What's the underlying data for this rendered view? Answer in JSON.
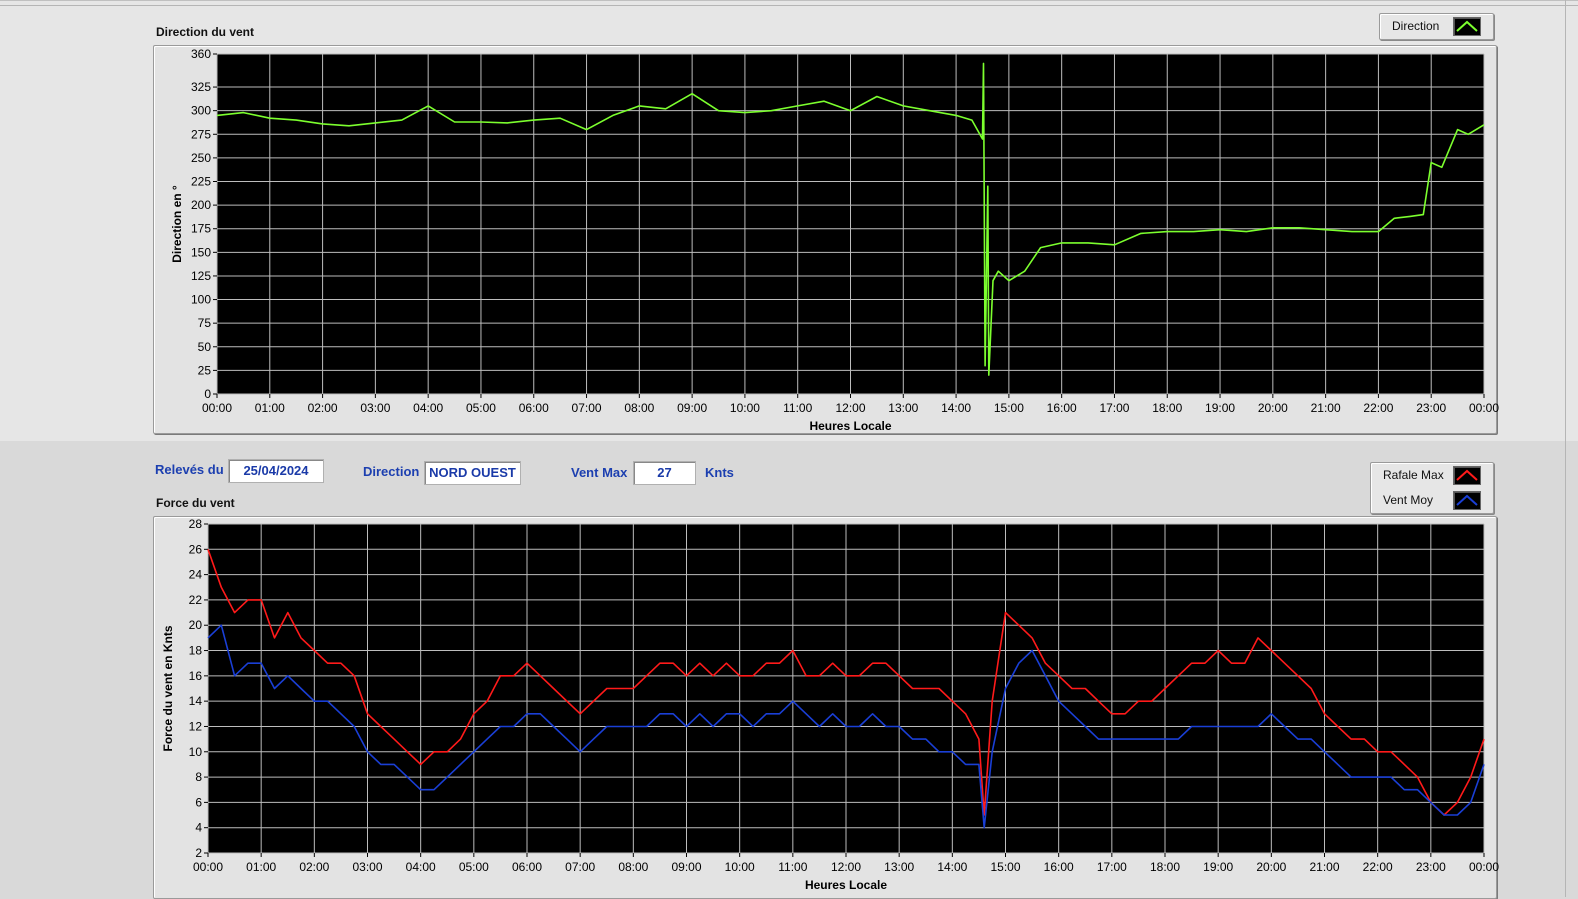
{
  "top_chart": {
    "section_title": "Direction du vent",
    "ylabel": "Direction en °",
    "xlabel": "Heures Locale",
    "legend": [
      {
        "label": "Direction",
        "color": "#7cff2e"
      }
    ]
  },
  "info": {
    "releves_label": "Relevés du",
    "date": "25/04/2024",
    "direction_label": "Direction",
    "direction_value": "NORD OUEST",
    "vent_max_label": "Vent Max",
    "vent_max_value": "27",
    "unit": "Knts"
  },
  "bottom_chart": {
    "section_title": "Force du vent",
    "ylabel": "Force du vent en Knts",
    "xlabel": "Heures Locale",
    "legend": [
      {
        "label": "Rafale Max",
        "color": "#ff1a1a"
      },
      {
        "label": "Vent Moy",
        "color": "#1a3fd6"
      }
    ]
  },
  "chart_data": [
    {
      "type": "line",
      "ylabel": "Direction en °",
      "xlabel": "Heures Locale",
      "ylim": [
        0,
        360
      ],
      "yticks": [
        0,
        25,
        50,
        75,
        100,
        125,
        150,
        175,
        200,
        225,
        250,
        275,
        300,
        325,
        360
      ],
      "xticks": [
        "00:00",
        "01:00",
        "02:00",
        "03:00",
        "04:00",
        "05:00",
        "06:00",
        "07:00",
        "08:00",
        "09:00",
        "10:00",
        "11:00",
        "12:00",
        "13:00",
        "14:00",
        "15:00",
        "16:00",
        "17:00",
        "18:00",
        "19:00",
        "20:00",
        "21:00",
        "22:00",
        "23:00",
        "00:00"
      ],
      "grid": true,
      "legend_position": "top-right",
      "series": [
        {
          "name": "Direction",
          "color": "#7cff2e",
          "x": [
            0,
            0.5,
            1,
            1.5,
            2,
            2.5,
            3,
            3.5,
            4,
            4.5,
            5,
            5.5,
            6,
            6.5,
            7,
            7.5,
            8,
            8.5,
            9,
            9.5,
            10,
            10.5,
            11,
            11.5,
            12,
            12.5,
            13,
            13.5,
            14,
            14.3,
            14.5,
            14.52,
            14.55,
            14.6,
            14.62,
            14.7,
            14.8,
            15,
            15.3,
            15.6,
            16,
            16.5,
            17,
            17.5,
            18,
            18.5,
            19,
            19.5,
            20,
            20.5,
            21,
            21.5,
            22,
            22.3,
            22.6,
            22.85,
            23,
            23.2,
            23.5,
            23.7,
            24
          ],
          "y": [
            295,
            298,
            292,
            290,
            286,
            284,
            287,
            290,
            305,
            288,
            288,
            287,
            290,
            292,
            280,
            295,
            305,
            302,
            318,
            300,
            298,
            300,
            305,
            310,
            300,
            315,
            305,
            300,
            295,
            290,
            270,
            350,
            30,
            220,
            20,
            120,
            130,
            120,
            130,
            155,
            160,
            160,
            158,
            170,
            172,
            172,
            174,
            172,
            176,
            176,
            174,
            172,
            172,
            186,
            188,
            190,
            245,
            240,
            280,
            275,
            285
          ]
        }
      ]
    },
    {
      "type": "line",
      "ylabel": "Force du vent en Knts",
      "xlabel": "Heures Locale",
      "ylim": [
        2,
        28
      ],
      "yticks": [
        2,
        4,
        6,
        8,
        10,
        12,
        14,
        16,
        18,
        20,
        22,
        24,
        26,
        28
      ],
      "xticks": [
        "00:00",
        "01:00",
        "02:00",
        "03:00",
        "04:00",
        "05:00",
        "06:00",
        "07:00",
        "08:00",
        "09:00",
        "10:00",
        "11:00",
        "12:00",
        "13:00",
        "14:00",
        "15:00",
        "16:00",
        "17:00",
        "18:00",
        "19:00",
        "20:00",
        "21:00",
        "22:00",
        "23:00",
        "00:00"
      ],
      "grid": true,
      "legend_position": "top-right",
      "x": [
        0,
        0.25,
        0.5,
        0.75,
        1,
        1.25,
        1.5,
        1.75,
        2,
        2.25,
        2.5,
        2.75,
        3,
        3.25,
        3.5,
        3.75,
        4,
        4.25,
        4.5,
        4.75,
        5,
        5.25,
        5.5,
        5.75,
        6,
        6.25,
        6.5,
        6.75,
        7,
        7.25,
        7.5,
        7.75,
        8,
        8.25,
        8.5,
        8.75,
        9,
        9.25,
        9.5,
        9.75,
        10,
        10.25,
        10.5,
        10.75,
        11,
        11.25,
        11.5,
        11.75,
        12,
        12.25,
        12.5,
        12.75,
        13,
        13.25,
        13.5,
        13.75,
        14,
        14.25,
        14.5,
        14.6,
        14.75,
        15,
        15.25,
        15.5,
        15.75,
        16,
        16.25,
        16.5,
        16.75,
        17,
        17.25,
        17.5,
        17.75,
        18,
        18.25,
        18.5,
        18.75,
        19,
        19.25,
        19.5,
        19.75,
        20,
        20.25,
        20.5,
        20.75,
        21,
        21.25,
        21.5,
        21.75,
        22,
        22.25,
        22.5,
        22.75,
        23,
        23.25,
        23.5,
        23.75,
        24
      ],
      "series": [
        {
          "name": "Rafale Max",
          "color": "#ff1a1a",
          "y": [
            26,
            23,
            21,
            22,
            22,
            19,
            21,
            19,
            18,
            17,
            17,
            16,
            13,
            12,
            11,
            10,
            9,
            10,
            10,
            11,
            13,
            14,
            16,
            16,
            17,
            16,
            15,
            14,
            13,
            14,
            15,
            15,
            15,
            16,
            17,
            17,
            16,
            17,
            16,
            17,
            16,
            16,
            17,
            17,
            18,
            16,
            16,
            17,
            16,
            16,
            17,
            17,
            16,
            15,
            15,
            15,
            14,
            13,
            11,
            5,
            14,
            21,
            20,
            19,
            17,
            16,
            15,
            15,
            14,
            13,
            13,
            14,
            14,
            15,
            16,
            17,
            17,
            18,
            17,
            17,
            19,
            18,
            17,
            16,
            15,
            13,
            12,
            11,
            11,
            10,
            10,
            9,
            8,
            6,
            5,
            6,
            8,
            11
          ]
        },
        {
          "name": "Vent Moy",
          "color": "#1a3fd6",
          "y": [
            19,
            20,
            16,
            17,
            17,
            15,
            16,
            15,
            14,
            14,
            13,
            12,
            10,
            9,
            9,
            8,
            7,
            7,
            8,
            9,
            10,
            11,
            12,
            12,
            13,
            13,
            12,
            11,
            10,
            11,
            12,
            12,
            12,
            12,
            13,
            13,
            12,
            13,
            12,
            13,
            13,
            12,
            13,
            13,
            14,
            13,
            12,
            13,
            12,
            12,
            13,
            12,
            12,
            11,
            11,
            10,
            10,
            9,
            9,
            4,
            10,
            15,
            17,
            18,
            16,
            14,
            13,
            12,
            11,
            11,
            11,
            11,
            11,
            11,
            11,
            12,
            12,
            12,
            12,
            12,
            12,
            13,
            12,
            11,
            11,
            10,
            9,
            8,
            8,
            8,
            8,
            7,
            7,
            6,
            5,
            5,
            6,
            9
          ]
        }
      ]
    }
  ]
}
